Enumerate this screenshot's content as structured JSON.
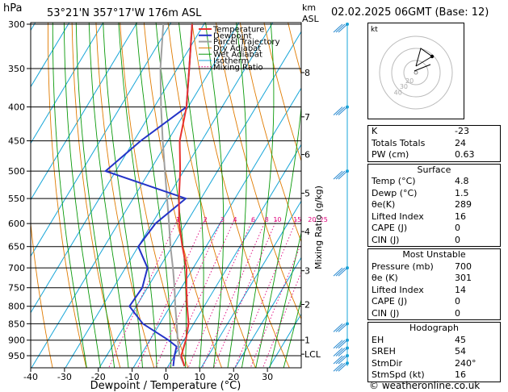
{
  "header": {
    "location": "53°21'N 357°17'W 176m ASL",
    "date": "02.02.2025 06GMT (Base: 12)",
    "hpa_label": "hPa",
    "km_label": "km",
    "asl_label": "ASL"
  },
  "chart_data": {
    "type": "line",
    "title": "",
    "xlabel": "Dewpoint / Temperature (°C)",
    "ylabel": "Mixing Ratio (g/kg)",
    "xlim": [
      -40,
      40
    ],
    "x_ticks": [
      "-40",
      "-30",
      "-20",
      "-10",
      "0",
      "10",
      "20",
      "30"
    ],
    "pressure_levels": [
      "300",
      "350",
      "400",
      "450",
      "500",
      "550",
      "600",
      "650",
      "700",
      "750",
      "800",
      "850",
      "900",
      "950"
    ],
    "height_km_labels": [
      {
        "label": "8",
        "p": 355
      },
      {
        "label": "7",
        "p": 414
      },
      {
        "label": "6",
        "p": 472
      },
      {
        "label": "5",
        "p": 540
      },
      {
        "label": "4",
        "p": 617
      },
      {
        "label": "3",
        "p": 707
      },
      {
        "label": "2",
        "p": 795
      },
      {
        "label": "1",
        "p": 900
      },
      {
        "label": "LCL",
        "p": 945
      }
    ],
    "mixing_ratio_labels": [
      "1",
      "2",
      "3",
      "4",
      "6",
      "8",
      "10",
      "15",
      "20",
      "25"
    ],
    "legend": [
      "Temperature",
      "Dewpoint",
      "Parcel Trajectory",
      "Dry Adiabat",
      "Wet Adiabat",
      "Isotherm",
      "Mixing Ratio"
    ],
    "legend_position": "top-left",
    "series": [
      {
        "name": "Temperature",
        "color": "#e8312f",
        "points": [
          [
            4.8,
            985
          ],
          [
            2.0,
            950
          ],
          [
            0.6,
            900
          ],
          [
            -1.5,
            850
          ],
          [
            -5.0,
            800
          ],
          [
            -8.5,
            750
          ],
          [
            -12.0,
            700
          ],
          [
            -17.0,
            650
          ],
          [
            -22.0,
            600
          ],
          [
            -26.5,
            550
          ],
          [
            -31.0,
            500
          ],
          [
            -36.5,
            450
          ],
          [
            -40.5,
            400
          ],
          [
            -46.5,
            350
          ],
          [
            -53.5,
            300
          ]
        ]
      },
      {
        "name": "Dewpoint",
        "color": "#2433c8",
        "points": [
          [
            1.5,
            985
          ],
          [
            0.0,
            950
          ],
          [
            -1.0,
            920
          ],
          [
            -4.5,
            900
          ],
          [
            -15.0,
            850
          ],
          [
            -22.0,
            800
          ],
          [
            -21.5,
            750
          ],
          [
            -23.5,
            700
          ],
          [
            -30.0,
            650
          ],
          [
            -29.0,
            600
          ],
          [
            -24.5,
            550
          ],
          [
            -53.0,
            500
          ],
          [
            -48.0,
            450
          ],
          [
            -40.5,
            400
          ],
          [
            -46.5,
            350
          ],
          [
            -53.5,
            300
          ]
        ]
      },
      {
        "name": "Parcel Trajectory",
        "color": "#a0a0a0",
        "points": [
          [
            4.8,
            985
          ],
          [
            1.2,
            945
          ],
          [
            -1.8,
            900
          ],
          [
            -5.0,
            850
          ],
          [
            -8.5,
            800
          ],
          [
            -12.0,
            750
          ],
          [
            -16.0,
            700
          ],
          [
            -20.5,
            650
          ],
          [
            -25.0,
            600
          ],
          [
            -30.0,
            550
          ],
          [
            -35.5,
            500
          ],
          [
            -41.5,
            450
          ],
          [
            -48.0,
            400
          ],
          [
            -55.0,
            350
          ],
          [
            -62.0,
            300
          ]
        ]
      }
    ],
    "colors": {
      "temperature": "#e8312f",
      "dewpoint": "#2433c8",
      "parcel": "#a0a0a0",
      "dry_adiabat": "#e07b00",
      "wet_adiabat": "#0a9a0a",
      "isotherm": "#18a6d8",
      "mixing_ratio": "#e0007c"
    }
  },
  "hodograph": {
    "label": "kt",
    "ring_labels": [
      "20",
      "30",
      "40"
    ]
  },
  "indices": [
    {
      "label": "K",
      "value": "-23"
    },
    {
      "label": "Totals Totals",
      "value": "24"
    },
    {
      "label": "PW (cm)",
      "value": "0.63"
    }
  ],
  "surface": {
    "title": "Surface",
    "rows": [
      {
        "label": "Temp (°C)",
        "value": "4.8"
      },
      {
        "label": "Dewp (°C)",
        "value": "1.5"
      },
      {
        "label": "θe(K)",
        "value": "289"
      },
      {
        "label": "Lifted Index",
        "value": "16"
      },
      {
        "label": "CAPE (J)",
        "value": "0"
      },
      {
        "label": "CIN (J)",
        "value": "0"
      }
    ]
  },
  "most_unstable": {
    "title": "Most Unstable",
    "rows": [
      {
        "label": "Pressure (mb)",
        "value": "700"
      },
      {
        "label": "θe (K)",
        "value": "301"
      },
      {
        "label": "Lifted Index",
        "value": "14"
      },
      {
        "label": "CAPE (J)",
        "value": "0"
      },
      {
        "label": "CIN (J)",
        "value": "0"
      }
    ]
  },
  "hodograph_table": {
    "title": "Hodograph",
    "rows": [
      {
        "label": "EH",
        "value": "45"
      },
      {
        "label": "SREH",
        "value": "54"
      },
      {
        "label": "StmDir",
        "value": "240°"
      },
      {
        "label": "StmSpd (kt)",
        "value": "16"
      }
    ]
  },
  "footer": {
    "copyright": "© weatheronline.co.uk"
  }
}
